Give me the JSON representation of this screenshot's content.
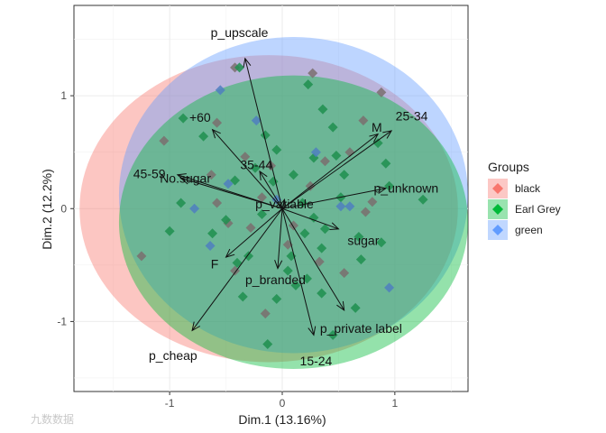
{
  "chart_data": {
    "type": "biplot",
    "xlabel": "Dim.1 (13.16%)",
    "ylabel": "Dim.2 (12.2%)",
    "xlim": [
      -1.85,
      1.65
    ],
    "ylim": [
      -1.62,
      1.8
    ],
    "x_ticks": [
      -1,
      0,
      1
    ],
    "y_ticks": [
      -1,
      0,
      1
    ],
    "grid": true,
    "legend": {
      "title": "Groups",
      "position": "right",
      "entries": [
        {
          "name": "black",
          "color": "#F8766D"
        },
        {
          "name": "Earl Grey",
          "color": "#00BA38"
        },
        {
          "name": "green",
          "color": "#619CFF"
        }
      ]
    },
    "ellipses": [
      {
        "group": "black",
        "cx": -0.12,
        "cy": 0.0,
        "rx": 1.68,
        "ry": 1.36,
        "color": "#F8766D"
      },
      {
        "group": "green",
        "cx": 0.1,
        "cy": 0.12,
        "rx": 1.55,
        "ry": 1.4,
        "color": "#619CFF"
      },
      {
        "group": "Earl Grey",
        "cx": 0.1,
        "cy": -0.12,
        "rx": 1.55,
        "ry": 1.3,
        "color": "#00BA38"
      }
    ],
    "variables": [
      {
        "name": "p_upscale",
        "x": -0.33,
        "y": 1.33,
        "lx": -0.38,
        "ly": 1.55
      },
      {
        "name": "+60",
        "x": -0.62,
        "y": 0.7,
        "lx": -0.73,
        "ly": 0.8
      },
      {
        "name": "35-44",
        "x": -0.2,
        "y": 0.33,
        "lx": -0.23,
        "ly": 0.38
      },
      {
        "name": "45-59",
        "x": -0.93,
        "y": 0.3,
        "lx": -1.18,
        "ly": 0.3
      },
      {
        "name": "No.sugar",
        "x": -0.9,
        "y": 0.27,
        "lx": -0.86,
        "ly": 0.26
      },
      {
        "name": "p_variable",
        "x": 0.02,
        "y": 0.08,
        "lx": 0.02,
        "ly": 0.03
      },
      {
        "name": "M",
        "x": 0.85,
        "y": 0.66,
        "lx": 0.84,
        "ly": 0.71
      },
      {
        "name": "25-34",
        "x": 0.97,
        "y": 0.69,
        "lx": 1.15,
        "ly": 0.81
      },
      {
        "name": "p_unknown",
        "x": 0.92,
        "y": 0.18,
        "lx": 1.1,
        "ly": 0.17
      },
      {
        "name": "sugar",
        "x": 0.5,
        "y": -0.18,
        "lx": 0.72,
        "ly": -0.29
      },
      {
        "name": "F",
        "x": -0.5,
        "y": -0.43,
        "lx": -0.6,
        "ly": -0.5
      },
      {
        "name": "p_branded",
        "x": -0.04,
        "y": -0.53,
        "lx": -0.06,
        "ly": -0.64
      },
      {
        "name": "p_cheap",
        "x": -0.8,
        "y": -1.08,
        "lx": -0.97,
        "ly": -1.31
      },
      {
        "name": "p_private label",
        "x": 0.28,
        "y": -1.12,
        "lx": 0.7,
        "ly": -1.07
      },
      {
        "name": "15-24",
        "x": 0.55,
        "y": -0.9,
        "lx": 0.3,
        "ly": -1.36
      }
    ],
    "points": {
      "black": [
        [
          -0.42,
          1.25
        ],
        [
          0.27,
          1.2
        ],
        [
          0.88,
          1.03
        ],
        [
          -0.58,
          0.76
        ],
        [
          -1.05,
          0.6
        ],
        [
          -0.33,
          0.46
        ],
        [
          -0.1,
          0.38
        ],
        [
          -0.63,
          0.3
        ],
        [
          -0.18,
          0.1
        ],
        [
          -0.58,
          0.05
        ],
        [
          -0.48,
          -0.13
        ],
        [
          -0.28,
          -0.17
        ],
        [
          0.05,
          -0.32
        ],
        [
          -0.42,
          -0.55
        ],
        [
          -1.25,
          -0.42
        ],
        [
          0.33,
          -0.47
        ],
        [
          0.55,
          -0.57
        ],
        [
          -0.15,
          -0.93
        ],
        [
          0.8,
          0.06
        ],
        [
          0.74,
          -0.03
        ],
        [
          0.6,
          0.5
        ],
        [
          0.38,
          0.42
        ],
        [
          0.72,
          0.78
        ],
        [
          0.25,
          0.2
        ],
        [
          0.1,
          -0.15
        ]
      ],
      "Earl Grey": [
        [
          -0.38,
          1.25
        ],
        [
          0.23,
          1.1
        ],
        [
          0.36,
          0.88
        ],
        [
          -0.88,
          0.8
        ],
        [
          -0.7,
          0.64
        ],
        [
          0.45,
          0.72
        ],
        [
          0.85,
          0.58
        ],
        [
          -0.05,
          0.52
        ],
        [
          0.28,
          0.45
        ],
        [
          0.92,
          0.4
        ],
        [
          -0.24,
          0.36
        ],
        [
          0.1,
          0.3
        ],
        [
          -0.08,
          0.24
        ],
        [
          -0.42,
          0.25
        ],
        [
          1.25,
          0.08
        ],
        [
          -0.9,
          0.05
        ],
        [
          0.52,
          0.1
        ],
        [
          0.18,
          0.05
        ],
        [
          -1.0,
          -0.2
        ],
        [
          0.68,
          -0.25
        ],
        [
          -0.5,
          -0.1
        ],
        [
          0.35,
          -0.35
        ],
        [
          0.88,
          -0.3
        ],
        [
          -0.18,
          -0.05
        ],
        [
          0.28,
          -0.08
        ],
        [
          0.7,
          -0.45
        ],
        [
          0.08,
          -0.42
        ],
        [
          -0.4,
          -0.48
        ],
        [
          0.22,
          -0.62
        ],
        [
          0.35,
          -0.75
        ],
        [
          -0.35,
          -0.78
        ],
        [
          -0.05,
          -0.8
        ],
        [
          0.45,
          -1.12
        ],
        [
          -0.13,
          -1.2
        ],
        [
          0.65,
          -0.88
        ],
        [
          0.48,
          0.47
        ],
        [
          0.2,
          -0.22
        ],
        [
          -0.3,
          -0.42
        ],
        [
          0.12,
          -0.68
        ],
        [
          0.55,
          0.3
        ],
        [
          -0.15,
          0.65
        ],
        [
          0.05,
          -0.55
        ],
        [
          0.38,
          -0.18
        ],
        [
          -0.62,
          -0.22
        ],
        [
          0.95,
          0.2
        ]
      ],
      "green": [
        [
          -0.55,
          1.05
        ],
        [
          -0.23,
          0.78
        ],
        [
          -0.78,
          0.0
        ],
        [
          -0.48,
          0.22
        ],
        [
          0.52,
          0.02
        ],
        [
          -0.64,
          -0.33
        ],
        [
          0.3,
          0.5
        ],
        [
          0.95,
          -0.7
        ],
        [
          -0.05,
          0.08
        ],
        [
          0.6,
          0.02
        ]
      ]
    }
  },
  "watermark": "九数数据"
}
